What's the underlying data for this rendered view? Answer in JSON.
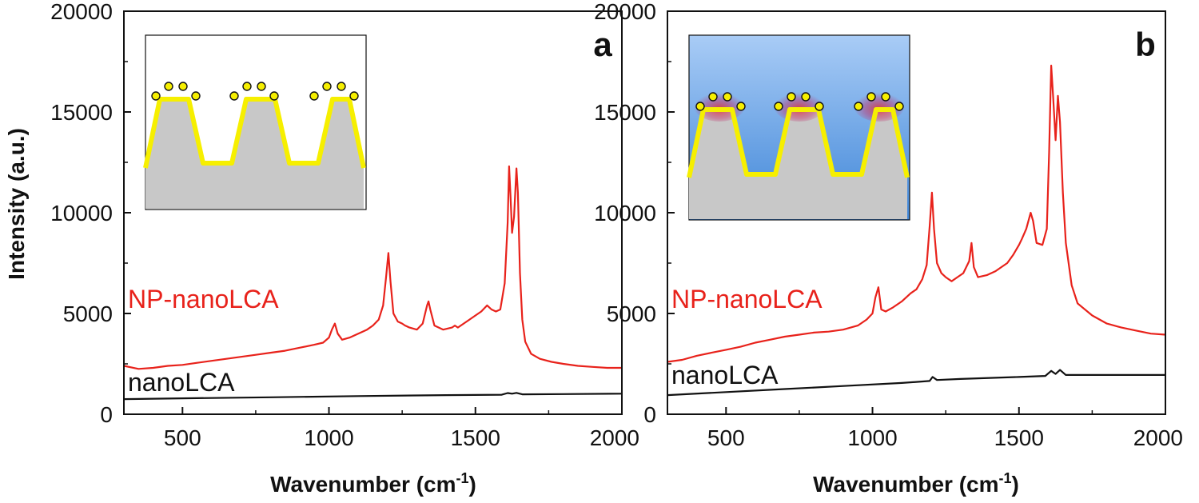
{
  "ylabel": "Intensity (a.u.)",
  "xlabel_main": "Wavenumber (cm",
  "xlabel_exp": "-1",
  "xlabel_close": ")",
  "colors": {
    "np": "#e8221b",
    "bare": "#111111",
    "metal": "#f6ef00",
    "substrate": "#c8c8c8"
  },
  "chart_data": [
    {
      "type": "line",
      "panel_letter": "a",
      "xlim": [
        300,
        2000
      ],
      "ylim": [
        0,
        20000
      ],
      "xticks": [
        500,
        1000,
        1500,
        2000
      ],
      "yticks": [
        0,
        5000,
        10000,
        15000,
        20000
      ],
      "xlabel": "Wavenumber (cm-1)",
      "ylabel": "Intensity (a.u.)",
      "inset": "gold-coated trapezoid nanostructures with nanoparticles (in air)",
      "series": [
        {
          "name": "NP-nanoLCA",
          "color": "#e8221b",
          "x": [
            300,
            350,
            400,
            450,
            500,
            550,
            600,
            650,
            700,
            750,
            800,
            850,
            900,
            950,
            980,
            1000,
            1010,
            1020,
            1030,
            1045,
            1070,
            1100,
            1130,
            1150,
            1170,
            1185,
            1195,
            1203,
            1210,
            1220,
            1235,
            1250,
            1260,
            1275,
            1300,
            1320,
            1335,
            1340,
            1346,
            1360,
            1390,
            1420,
            1430,
            1440,
            1460,
            1480,
            1500,
            1520,
            1540,
            1555,
            1570,
            1585,
            1600,
            1610,
            1615,
            1620,
            1625,
            1632,
            1640,
            1645,
            1652,
            1660,
            1670,
            1690,
            1720,
            1760,
            1800,
            1850,
            1900,
            1950,
            2000
          ],
          "y": [
            2400,
            2250,
            2300,
            2400,
            2450,
            2550,
            2650,
            2750,
            2850,
            2950,
            3050,
            3150,
            3300,
            3450,
            3550,
            3800,
            4200,
            4500,
            4000,
            3700,
            3800,
            4000,
            4200,
            4400,
            4700,
            5400,
            6800,
            8000,
            6600,
            5000,
            4600,
            4500,
            4400,
            4300,
            4200,
            4500,
            5400,
            5600,
            5200,
            4400,
            4200,
            4300,
            4400,
            4300,
            4500,
            4700,
            4900,
            5100,
            5400,
            5200,
            5100,
            5200,
            6500,
            9500,
            12300,
            10800,
            9000,
            9800,
            12200,
            11000,
            7000,
            4700,
            3600,
            3000,
            2750,
            2600,
            2500,
            2400,
            2350,
            2300,
            2300
          ]
        },
        {
          "name": "nanoLCA",
          "color": "#111111",
          "x": [
            300,
            500,
            800,
            1100,
            1400,
            1590,
            1610,
            1625,
            1640,
            1660,
            1800,
            2000
          ],
          "y": [
            750,
            790,
            840,
            900,
            950,
            970,
            1050,
            1020,
            1060,
            990,
            1000,
            1020
          ]
        }
      ]
    },
    {
      "type": "line",
      "panel_letter": "b",
      "xlim": [
        300,
        2000
      ],
      "ylim": [
        0,
        20000
      ],
      "xticks": [
        500,
        1000,
        1500,
        2000
      ],
      "yticks": [
        0,
        5000,
        10000,
        15000,
        20000
      ],
      "xlabel": "Wavenumber (cm-1)",
      "ylabel": "",
      "inset": "gold-coated trapezoid nanostructures with nanoparticles (in liquid)",
      "series": [
        {
          "name": "NP-nanoLCA",
          "color": "#e8221b",
          "x": [
            300,
            350,
            400,
            450,
            500,
            550,
            600,
            650,
            700,
            750,
            800,
            850,
            900,
            950,
            980,
            1000,
            1010,
            1020,
            1030,
            1045,
            1070,
            1100,
            1130,
            1150,
            1170,
            1185,
            1195,
            1203,
            1210,
            1220,
            1235,
            1250,
            1270,
            1290,
            1310,
            1330,
            1338,
            1346,
            1360,
            1390,
            1420,
            1440,
            1460,
            1480,
            1500,
            1510,
            1525,
            1540,
            1548,
            1560,
            1580,
            1595,
            1603,
            1610,
            1617,
            1625,
            1633,
            1640,
            1650,
            1660,
            1680,
            1700,
            1750,
            1800,
            1850,
            1900,
            1950,
            2000
          ],
          "y": [
            2600,
            2700,
            2900,
            3050,
            3200,
            3350,
            3550,
            3700,
            3850,
            3950,
            4050,
            4100,
            4200,
            4400,
            4700,
            5000,
            5800,
            6300,
            5200,
            5100,
            5300,
            5600,
            6000,
            6200,
            6700,
            7400,
            9300,
            11000,
            9200,
            7500,
            7000,
            6800,
            6600,
            6800,
            7000,
            7600,
            8500,
            7300,
            6800,
            6900,
            7100,
            7300,
            7500,
            7900,
            8400,
            8700,
            9200,
            10000,
            9600,
            8500,
            8400,
            9200,
            13000,
            17300,
            15700,
            13600,
            15800,
            14500,
            11000,
            8500,
            6400,
            5500,
            4900,
            4500,
            4300,
            4150,
            4000,
            3950
          ]
        },
        {
          "name": "nanoLCA",
          "color": "#111111",
          "x": [
            300,
            500,
            700,
            900,
            1100,
            1195,
            1205,
            1220,
            1300,
            1400,
            1500,
            1590,
            1610,
            1625,
            1640,
            1660,
            1800,
            2000
          ],
          "y": [
            950,
            1100,
            1250,
            1400,
            1550,
            1650,
            1850,
            1700,
            1750,
            1800,
            1850,
            1900,
            2150,
            2000,
            2200,
            1950,
            1950,
            1950
          ]
        }
      ]
    }
  ]
}
